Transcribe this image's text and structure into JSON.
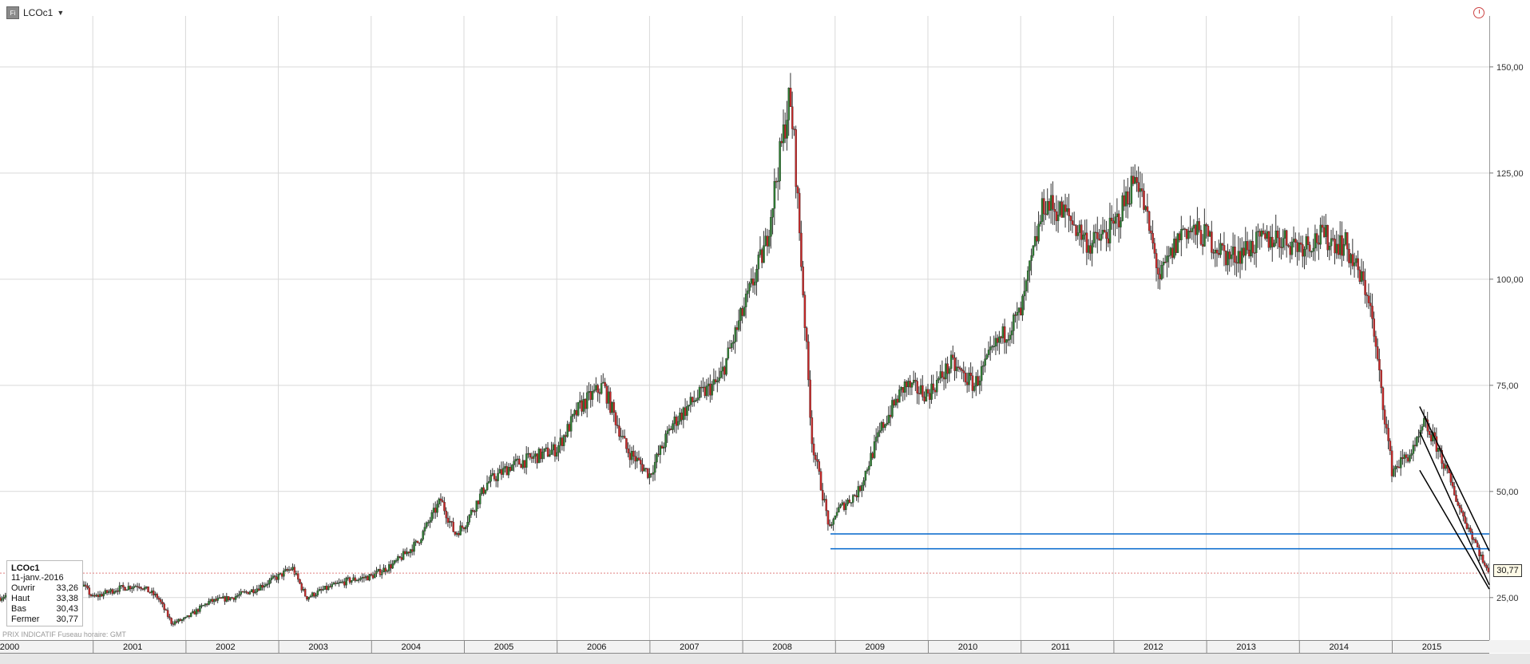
{
  "header": {
    "symbol": "LCOc1",
    "icon_label": "Fi"
  },
  "info_panel": {
    "symbol": "LCOc1",
    "date": "11-janv.-2016",
    "rows": [
      {
        "label": "Ouvrir",
        "value": "33,26"
      },
      {
        "label": "Haut",
        "value": "33,38"
      },
      {
        "label": "Bas",
        "value": "30,43"
      },
      {
        "label": "Fermer",
        "value": "30,77"
      }
    ]
  },
  "footer_note": "PRIX INDICATIF   Fuseau horaire: GMT",
  "last_price_label": "30,77",
  "chart_data": {
    "type": "line",
    "title": "LCOc1",
    "x_tick_labels": [
      "2000",
      "2001",
      "2002",
      "2003",
      "2004",
      "2005",
      "2006",
      "2007",
      "2008",
      "2009",
      "2010",
      "2011",
      "2012",
      "2013",
      "2014",
      "2015"
    ],
    "y_tick_labels": [
      "25,00",
      "50,00",
      "75,00",
      "100,00",
      "125,00",
      "150,00"
    ],
    "y_ticks": [
      25,
      50,
      75,
      100,
      125,
      150
    ],
    "ylim": [
      15,
      162
    ],
    "xlim": [
      2000.0,
      2016.05
    ],
    "grid": true,
    "axis_side": "right",
    "series": [
      {
        "color": "#333333",
        "x": [
          2000.0,
          2000.25,
          2000.5,
          2000.75,
          2001.0,
          2001.25,
          2001.5,
          2001.7,
          2001.85,
          2002.0,
          2002.25,
          2002.5,
          2002.75,
          2003.0,
          2003.15,
          2003.3,
          2003.5,
          2003.75,
          2004.0,
          2004.25,
          2004.5,
          2004.75,
          2004.9,
          2005.0,
          2005.25,
          2005.5,
          2005.75,
          2006.0,
          2006.25,
          2006.5,
          2006.75,
          2007.0,
          2007.25,
          2007.5,
          2007.75,
          2008.0,
          2008.25,
          2008.5,
          2008.55,
          2008.75,
          2008.95,
          2009.0,
          2009.25,
          2009.5,
          2009.75,
          2010.0,
          2010.25,
          2010.5,
          2010.75,
          2011.0,
          2011.25,
          2011.5,
          2011.75,
          2012.0,
          2012.25,
          2012.5,
          2012.75,
          2013.0,
          2013.25,
          2013.5,
          2013.75,
          2014.0,
          2014.25,
          2014.5,
          2014.75,
          2015.0,
          2015.25,
          2015.35,
          2015.5,
          2015.75,
          2015.9,
          2016.03
        ],
        "y": [
          25,
          27,
          30,
          32,
          25,
          27,
          28,
          25,
          19,
          20,
          24,
          25,
          27,
          30,
          32,
          25,
          27,
          29,
          30,
          33,
          38,
          48,
          40,
          42,
          52,
          56,
          58,
          60,
          70,
          75,
          60,
          54,
          66,
          72,
          76,
          92,
          108,
          142,
          135,
          62,
          40,
          45,
          50,
          65,
          75,
          73,
          80,
          75,
          85,
          92,
          118,
          115,
          108,
          112,
          125,
          100,
          112,
          110,
          105,
          108,
          110,
          108,
          110,
          108,
          96,
          55,
          60,
          66,
          60,
          45,
          38,
          30.8
        ],
        "candles": true
      }
    ],
    "annotations": [
      {
        "type": "hline",
        "y": 36.5,
        "x_start": 2008.95,
        "x_end": 2016.05,
        "color": "#0066cc"
      },
      {
        "type": "hline",
        "y": 40.0,
        "x_start": 2008.95,
        "x_end": 2016.05,
        "color": "#0066cc"
      },
      {
        "type": "hline",
        "y": 30.77,
        "x_start": 2000.0,
        "x_end": 2016.05,
        "color": "#e08080",
        "dashed": true
      },
      {
        "type": "trendline",
        "x1": 2015.3,
        "y1": 70,
        "x2": 2016.05,
        "y2": 36,
        "color": "#000000"
      },
      {
        "type": "trendline",
        "x1": 2015.3,
        "y1": 64,
        "x2": 2016.05,
        "y2": 28,
        "color": "#000000"
      },
      {
        "type": "trendline",
        "x1": 2015.3,
        "y1": 55,
        "x2": 2016.05,
        "y2": 27,
        "color": "#000000"
      }
    ]
  }
}
